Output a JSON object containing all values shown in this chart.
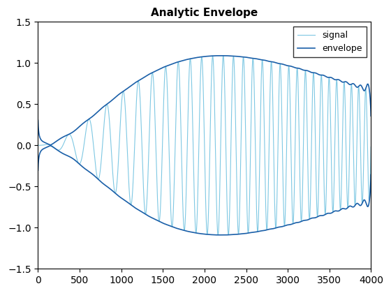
{
  "title": "Analytic Envelope",
  "xlim": [
    0,
    4000
  ],
  "ylim": [
    -1.5,
    1.5
  ],
  "xticks": [
    0,
    500,
    1000,
    1500,
    2000,
    2500,
    3000,
    3500,
    4000
  ],
  "yticks": [
    -1.5,
    -1.0,
    -0.5,
    0.0,
    0.5,
    1.0,
    1.5
  ],
  "signal_color": "#7ec8e3",
  "envelope_color": "#1a5fa8",
  "signal_label": "signal",
  "envelope_label": "envelope",
  "legend_loc": "upper right",
  "title_fontsize": 11,
  "tick_fontsize": 10,
  "legend_fontsize": 9,
  "n_samples": 4000,
  "background_color": "#ffffff",
  "signal_lw": 0.8,
  "envelope_lw": 1.2
}
